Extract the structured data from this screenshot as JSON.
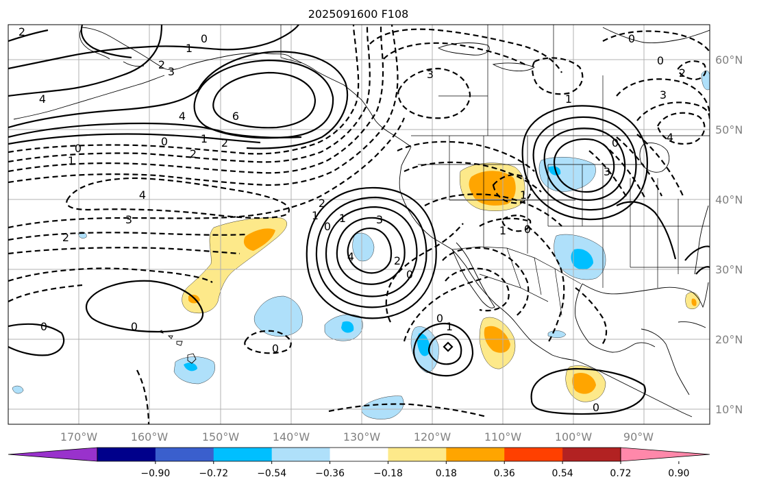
{
  "title": "2025091600 F108",
  "longitude_labels": [
    "170°W",
    "160°W",
    "150°W",
    "140°W",
    "130°W",
    "120°W",
    "110°W",
    "100°W",
    "90°W"
  ],
  "latitude_labels": [
    "60°N",
    "50°N",
    "40°N",
    "30°N",
    "20°N",
    "10°N"
  ],
  "colorbar": {
    "tick_labels": [
      "−0.90",
      "−0.72",
      "−0.54",
      "−0.36",
      "−0.18",
      "0.18",
      "0.36",
      "0.54",
      "0.72",
      "0.90"
    ],
    "colors": [
      "#9932cc",
      "#00008b",
      "#3a5fcd",
      "#00bfff",
      "#afe0fa",
      "#ffffff",
      "#fde98a",
      "#ffa500",
      "#ff4000",
      "#b22222",
      "#ff88aa"
    ]
  },
  "contour_labels": {
    "c1": "2",
    "c2": "0",
    "c3": "1",
    "c4": "2",
    "c5": "3",
    "c6": "4",
    "c7": "6",
    "c8": "4",
    "c9": "1",
    "c10": "2",
    "c11": "0",
    "c12": "2",
    "c13": "1",
    "c14": "0",
    "c15": "4",
    "c16": "3",
    "c17": "2",
    "c18": "2",
    "c19": "1",
    "c20": "0",
    "c21": "1",
    "c22": "3",
    "c23": "4",
    "c24": "2",
    "c25": "0",
    "c26": "0",
    "c27": "0",
    "c28": "0",
    "c29": "3",
    "c30": "0",
    "c31": "3",
    "c32": "1",
    "c33": "0",
    "c34": "1",
    "c35": "3",
    "c36": "1",
    "c37": "0",
    "c38": "2",
    "c39": "0",
    "c40": "0",
    "c41": "1",
    "c42": "0",
    "c43": "4"
  }
}
